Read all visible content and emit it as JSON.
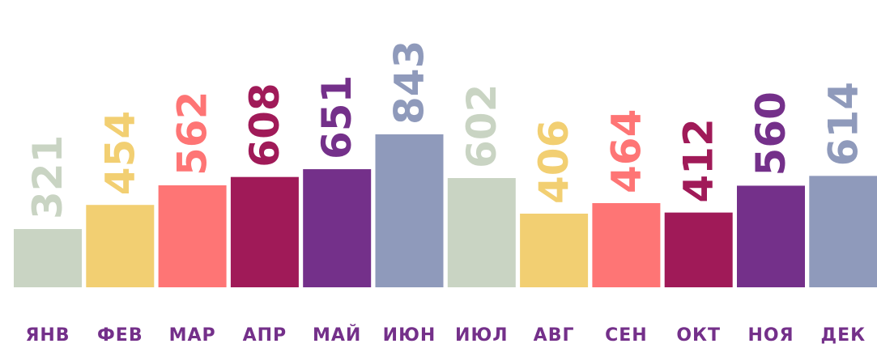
{
  "chart_data": {
    "type": "bar",
    "categories": [
      "ЯНВ",
      "ФЕВ",
      "МАР",
      "АПР",
      "МАЙ",
      "ИЮН",
      "ИЮЛ",
      "АВГ",
      "СЕН",
      "ОКТ",
      "НОЯ",
      "ДЕК"
    ],
    "values": [
      321,
      454,
      562,
      608,
      651,
      843,
      602,
      406,
      464,
      412,
      560,
      614
    ],
    "colors": [
      "#c9d4c3",
      "#f2cf72",
      "#fe7575",
      "#a01a58",
      "#74308a",
      "#8f9abb",
      "#c9d4c3",
      "#f2cf72",
      "#fe7575",
      "#a01a58",
      "#74308a",
      "#8f9abb"
    ]
  }
}
